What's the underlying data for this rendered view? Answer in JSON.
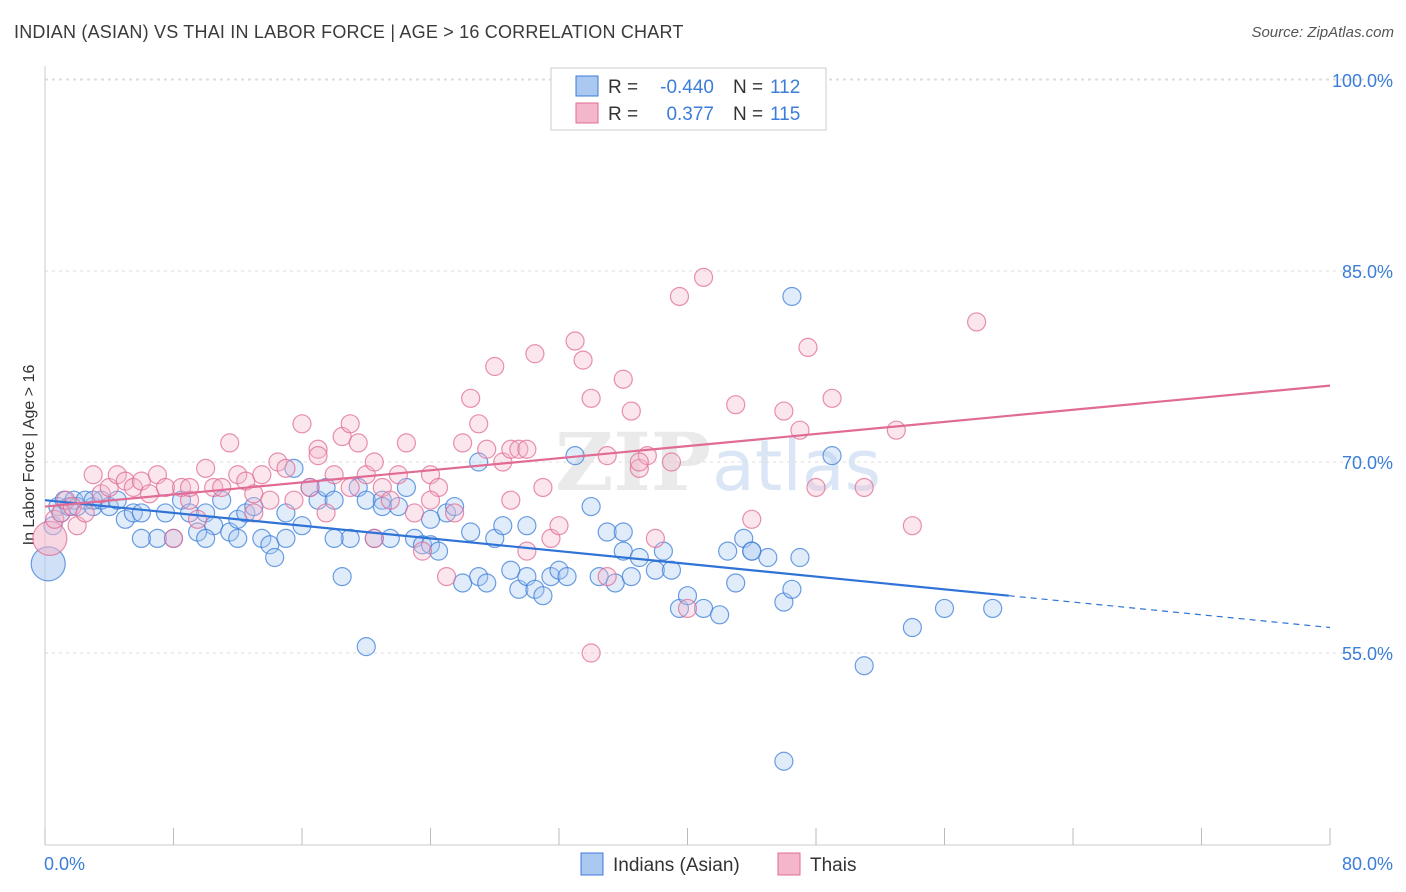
{
  "title": "INDIAN (ASIAN) VS THAI IN LABOR FORCE | AGE > 16 CORRELATION CHART",
  "source": "Source: ZipAtlas.com",
  "colors": {
    "blue": "#3b7dd8",
    "blue_fill": "#aac8f0",
    "pink": "#e06b94",
    "pink_fill": "#f4b6cb",
    "grid": "#dddddd"
  },
  "legend_top": {
    "rows": [
      {
        "r_label": "R =",
        "r_value": "-0.440",
        "n_label": "N =",
        "n_value": "112"
      },
      {
        "r_label": "R =",
        "r_value": "0.377",
        "n_label": "N =",
        "n_value": "115"
      }
    ]
  },
  "watermark": {
    "zip": "ZIP",
    "atlas": "atlas"
  },
  "chart_data": {
    "type": "scatter",
    "title": "INDIAN (ASIAN) VS THAI IN LABOR FORCE | AGE > 16 CORRELATION CHART",
    "xlabel": "",
    "ylabel": "In Labor Force | Age > 16",
    "xlim": [
      0,
      80
    ],
    "ylim": [
      40,
      102
    ],
    "x_tick_labels": [
      "0.0%",
      "80.0%"
    ],
    "y_ticks": [
      55,
      70,
      85,
      100
    ],
    "y_tick_labels": [
      "55.0%",
      "70.0%",
      "85.0%",
      "100.0%"
    ],
    "grid": true,
    "legend_position": "bottom-center",
    "series": [
      {
        "name": "Indians (Asian)",
        "color": "#3b7dd8",
        "trend": {
          "x": [
            0,
            60
          ],
          "y": [
            67.0,
            59.5
          ],
          "dashed_to": [
            80,
            57.0
          ]
        },
        "points": [
          [
            0.2,
            62
          ],
          [
            0.5,
            65
          ],
          [
            0.8,
            66.5
          ],
          [
            1,
            66
          ],
          [
            1.2,
            67
          ],
          [
            1.5,
            66.5
          ],
          [
            1.8,
            67
          ],
          [
            2,
            66.5
          ],
          [
            2.5,
            67
          ],
          [
            3,
            66.5
          ],
          [
            3.5,
            67
          ],
          [
            4,
            66.5
          ],
          [
            4.5,
            67
          ],
          [
            5,
            65.5
          ],
          [
            5.5,
            66
          ],
          [
            6,
            66
          ],
          [
            7,
            64
          ],
          [
            7.5,
            66
          ],
          [
            8,
            64
          ],
          [
            8.5,
            67
          ],
          [
            9,
            66
          ],
          [
            9.5,
            64.5
          ],
          [
            10,
            66
          ],
          [
            10.5,
            65
          ],
          [
            11,
            67
          ],
          [
            11.5,
            64.5
          ],
          [
            12,
            65.5
          ],
          [
            12.5,
            66
          ],
          [
            13,
            66.5
          ],
          [
            13.5,
            64
          ],
          [
            14,
            63.5
          ],
          [
            14.3,
            62.5
          ],
          [
            15,
            66
          ],
          [
            15.5,
            69.5
          ],
          [
            16,
            65
          ],
          [
            16.5,
            68
          ],
          [
            17,
            67
          ],
          [
            17.5,
            68
          ],
          [
            18,
            67
          ],
          [
            18.5,
            61
          ],
          [
            19,
            64
          ],
          [
            19.5,
            68
          ],
          [
            20,
            67
          ],
          [
            20.5,
            64
          ],
          [
            21,
            67
          ],
          [
            21.5,
            64
          ],
          [
            22,
            66.5
          ],
          [
            22.5,
            68
          ],
          [
            23,
            64
          ],
          [
            23.5,
            63.5
          ],
          [
            24,
            63.5
          ],
          [
            24.5,
            63
          ],
          [
            25,
            66
          ],
          [
            25.5,
            66.5
          ],
          [
            26,
            60.5
          ],
          [
            26.5,
            64.5
          ],
          [
            27,
            61
          ],
          [
            27.5,
            60.5
          ],
          [
            28,
            64
          ],
          [
            28.5,
            65
          ],
          [
            29,
            61.5
          ],
          [
            29.5,
            60
          ],
          [
            30,
            61
          ],
          [
            30.5,
            60
          ],
          [
            31,
            59.5
          ],
          [
            31.5,
            61
          ],
          [
            32,
            61.5
          ],
          [
            32.5,
            61
          ],
          [
            33,
            70.5
          ],
          [
            34,
            66.5
          ],
          [
            34.5,
            61
          ],
          [
            35,
            64.5
          ],
          [
            35.5,
            60.5
          ],
          [
            36,
            63
          ],
          [
            36.5,
            61
          ],
          [
            37,
            62.5
          ],
          [
            38,
            61.5
          ],
          [
            38.5,
            63
          ],
          [
            39,
            61.5
          ],
          [
            39.5,
            58.5
          ],
          [
            40,
            59.5
          ],
          [
            41,
            58.5
          ],
          [
            42,
            58
          ],
          [
            42.5,
            63
          ],
          [
            43,
            60.5
          ],
          [
            43.5,
            64
          ],
          [
            44,
            63
          ],
          [
            45,
            62.5
          ],
          [
            46,
            59
          ],
          [
            46.5,
            60
          ],
          [
            47,
            62.5
          ],
          [
            49,
            70.5
          ],
          [
            54,
            57
          ],
          [
            56,
            58.5
          ],
          [
            59,
            58.5
          ],
          [
            20,
            55.5
          ],
          [
            51,
            54
          ],
          [
            46,
            46.5
          ],
          [
            46.5,
            83
          ],
          [
            21,
            66.5
          ],
          [
            27,
            70
          ],
          [
            15,
            64
          ],
          [
            10,
            64
          ],
          [
            6,
            64
          ],
          [
            3,
            67
          ],
          [
            12,
            64
          ],
          [
            18,
            64
          ],
          [
            24,
            65.5
          ],
          [
            30,
            65
          ],
          [
            36,
            64.5
          ],
          [
            44,
            63
          ]
        ]
      },
      {
        "name": "Thais",
        "color": "#e06b94",
        "trend": {
          "x": [
            0,
            80
          ],
          "y": [
            66.5,
            76.0
          ]
        },
        "points": [
          [
            0.3,
            64
          ],
          [
            0.6,
            65.5
          ],
          [
            1,
            66
          ],
          [
            1.3,
            67
          ],
          [
            1.7,
            66.5
          ],
          [
            2,
            65
          ],
          [
            2.5,
            66
          ],
          [
            3,
            69
          ],
          [
            3.5,
            67.5
          ],
          [
            4,
            68
          ],
          [
            4.5,
            69
          ],
          [
            5,
            68.5
          ],
          [
            5.5,
            68
          ],
          [
            6,
            68.5
          ],
          [
            6.5,
            67.5
          ],
          [
            7,
            69
          ],
          [
            7.5,
            68
          ],
          [
            8,
            64
          ],
          [
            8.5,
            68
          ],
          [
            9,
            67
          ],
          [
            9.5,
            65.5
          ],
          [
            10,
            69.5
          ],
          [
            10.5,
            68
          ],
          [
            11,
            68
          ],
          [
            11.5,
            71.5
          ],
          [
            12,
            69
          ],
          [
            12.5,
            68.5
          ],
          [
            13,
            67.5
          ],
          [
            13.5,
            69
          ],
          [
            14,
            67
          ],
          [
            14.5,
            70
          ],
          [
            15,
            69.5
          ],
          [
            15.5,
            67
          ],
          [
            16,
            73
          ],
          [
            16.5,
            68
          ],
          [
            17,
            71
          ],
          [
            17.5,
            66
          ],
          [
            18,
            69
          ],
          [
            18.5,
            72
          ],
          [
            19,
            73
          ],
          [
            19.5,
            71.5
          ],
          [
            20,
            69
          ],
          [
            20.5,
            70
          ],
          [
            21,
            68
          ],
          [
            21.5,
            67
          ],
          [
            22,
            69
          ],
          [
            22.5,
            71.5
          ],
          [
            23,
            66
          ],
          [
            23.5,
            63
          ],
          [
            24,
            69
          ],
          [
            24.5,
            68
          ],
          [
            25,
            61
          ],
          [
            25.5,
            66
          ],
          [
            26,
            71.5
          ],
          [
            26.5,
            75
          ],
          [
            27,
            73
          ],
          [
            27.5,
            71
          ],
          [
            28,
            77.5
          ],
          [
            28.5,
            70
          ],
          [
            29,
            71
          ],
          [
            29.5,
            71
          ],
          [
            30,
            63
          ],
          [
            30.5,
            78.5
          ],
          [
            31,
            68
          ],
          [
            31.5,
            64
          ],
          [
            32,
            65
          ],
          [
            33,
            79.5
          ],
          [
            33.5,
            78
          ],
          [
            34,
            75
          ],
          [
            35,
            61
          ],
          [
            36,
            76.5
          ],
          [
            36.5,
            74
          ],
          [
            37,
            69.5
          ],
          [
            37.5,
            70.5
          ],
          [
            38,
            64
          ],
          [
            39,
            70
          ],
          [
            39.5,
            83
          ],
          [
            40,
            58.5
          ],
          [
            41,
            84.5
          ],
          [
            43,
            74.5
          ],
          [
            44,
            65.5
          ],
          [
            46,
            74
          ],
          [
            47,
            72.5
          ],
          [
            47.5,
            79
          ],
          [
            48,
            68
          ],
          [
            49,
            75
          ],
          [
            51,
            68
          ],
          [
            53,
            72.5
          ],
          [
            54,
            65
          ],
          [
            58,
            81
          ],
          [
            34,
            55
          ],
          [
            13,
            66
          ],
          [
            9,
            68
          ],
          [
            19,
            68
          ],
          [
            24,
            67
          ],
          [
            30,
            71
          ],
          [
            37,
            70
          ],
          [
            17,
            70.5
          ],
          [
            20.5,
            64
          ],
          [
            29,
            67
          ],
          [
            35,
            70.5
          ]
        ]
      }
    ]
  },
  "bottom_legend": [
    {
      "label": "Indians (Asian)"
    },
    {
      "label": "Thais"
    }
  ]
}
